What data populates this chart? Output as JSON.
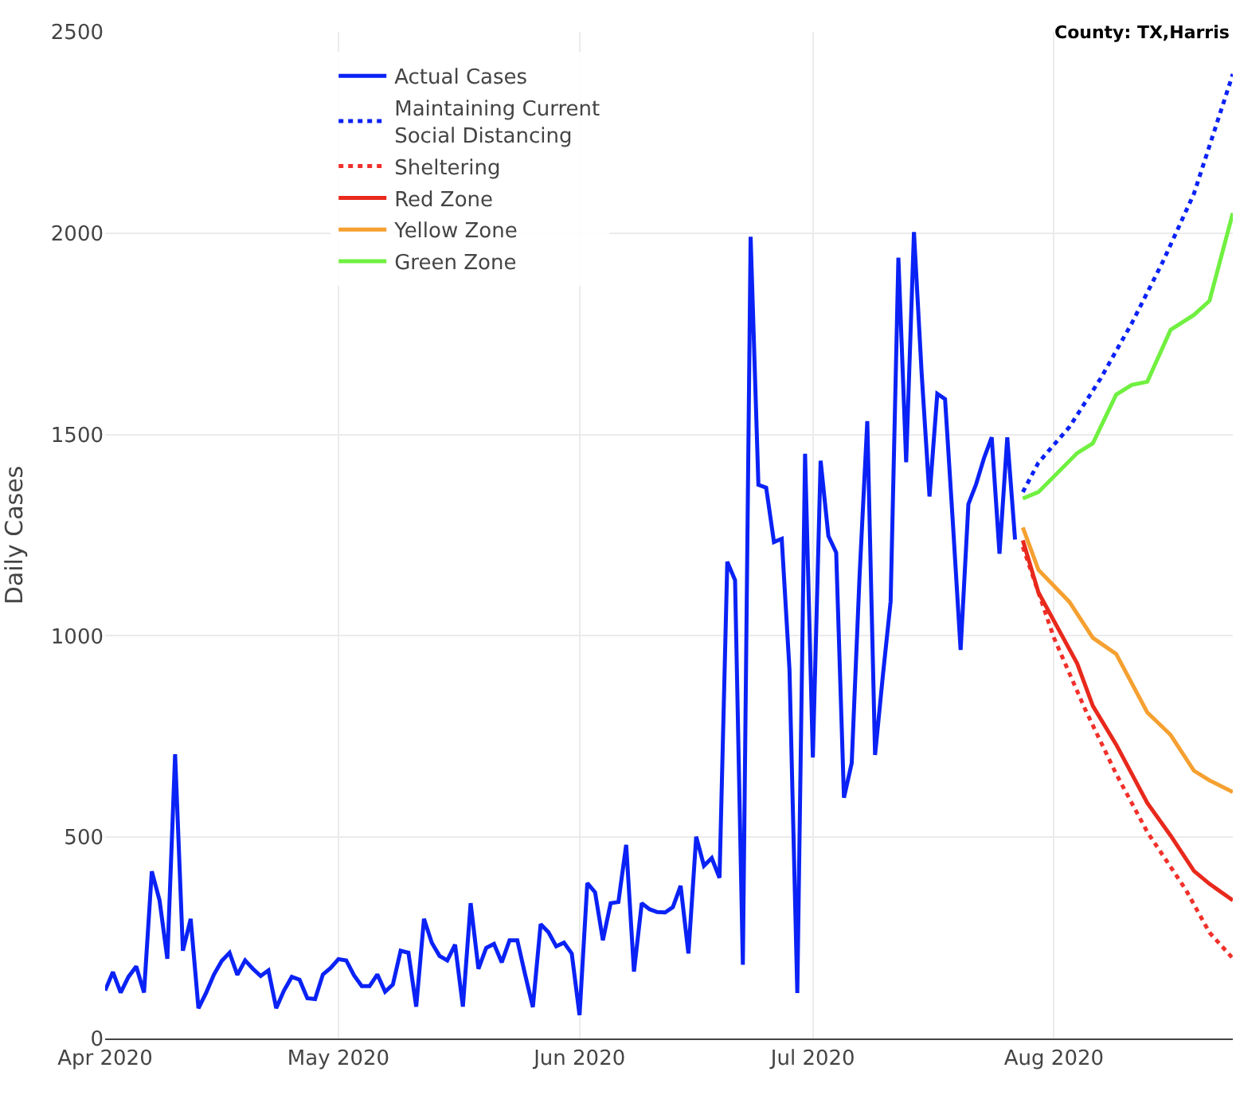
{
  "chart_data": {
    "type": "line",
    "ylabel": "Daily Cases",
    "annotations": [
      "County: TX,Harris"
    ],
    "xlim": [
      "2020-04-01",
      "2020-08-24"
    ],
    "xticks": [
      {
        "value": "2020-04-01",
        "label": "Apr 2020"
      },
      {
        "value": "2020-05-01",
        "label": "May 2020"
      },
      {
        "value": "2020-06-01",
        "label": "Jun 2020"
      },
      {
        "value": "2020-07-01",
        "label": "Jul 2020"
      },
      {
        "value": "2020-08-01",
        "label": "Aug 2020"
      }
    ],
    "ylim": [
      0,
      2500
    ],
    "yticks": [
      0,
      500,
      1000,
      1500,
      2000,
      2500
    ],
    "grid": true,
    "legend": "top left",
    "series": [
      {
        "name": "Actual Cases",
        "color": "#0a22f5",
        "line_style": "solid",
        "x": [
          "2020-04-01",
          "2020-04-02",
          "2020-04-03",
          "2020-04-04",
          "2020-04-05",
          "2020-04-06",
          "2020-04-07",
          "2020-04-08",
          "2020-04-09",
          "2020-04-10",
          "2020-04-11",
          "2020-04-12",
          "2020-04-13",
          "2020-04-14",
          "2020-04-15",
          "2020-04-16",
          "2020-04-17",
          "2020-04-18",
          "2020-04-19",
          "2020-04-20",
          "2020-04-21",
          "2020-04-22",
          "2020-04-23",
          "2020-04-24",
          "2020-04-25",
          "2020-04-26",
          "2020-04-27",
          "2020-04-28",
          "2020-04-29",
          "2020-04-30",
          "2020-05-01",
          "2020-05-02",
          "2020-05-03",
          "2020-05-04",
          "2020-05-05",
          "2020-05-06",
          "2020-05-07",
          "2020-05-08",
          "2020-05-09",
          "2020-05-10",
          "2020-05-11",
          "2020-05-12",
          "2020-05-13",
          "2020-05-14",
          "2020-05-15",
          "2020-05-16",
          "2020-05-17",
          "2020-05-18",
          "2020-05-19",
          "2020-05-20",
          "2020-05-21",
          "2020-05-22",
          "2020-05-23",
          "2020-05-24",
          "2020-05-25",
          "2020-05-26",
          "2020-05-27",
          "2020-05-28",
          "2020-05-29",
          "2020-05-30",
          "2020-05-31",
          "2020-06-01",
          "2020-06-02",
          "2020-06-03",
          "2020-06-04",
          "2020-06-05",
          "2020-06-06",
          "2020-06-07",
          "2020-06-08",
          "2020-06-09",
          "2020-06-10",
          "2020-06-11",
          "2020-06-12",
          "2020-06-13",
          "2020-06-14",
          "2020-06-15",
          "2020-06-16",
          "2020-06-17",
          "2020-06-18",
          "2020-06-19",
          "2020-06-20",
          "2020-06-21",
          "2020-06-22",
          "2020-06-23",
          "2020-06-24",
          "2020-06-25",
          "2020-06-26",
          "2020-06-27",
          "2020-06-28",
          "2020-06-29",
          "2020-06-30",
          "2020-07-01",
          "2020-07-02",
          "2020-07-03",
          "2020-07-04",
          "2020-07-05",
          "2020-07-06",
          "2020-07-07",
          "2020-07-08",
          "2020-07-09",
          "2020-07-10",
          "2020-07-11",
          "2020-07-12",
          "2020-07-13",
          "2020-07-14",
          "2020-07-15",
          "2020-07-16",
          "2020-07-17",
          "2020-07-18",
          "2020-07-19",
          "2020-07-20",
          "2020-07-21",
          "2020-07-22",
          "2020-07-23",
          "2020-07-24",
          "2020-07-25",
          "2020-07-26",
          "2020-07-27"
        ],
        "values": [
          119,
          165,
          114,
          153,
          179,
          114,
          415,
          343,
          198,
          706,
          218,
          297,
          75,
          114,
          159,
          193,
          213,
          158,
          194,
          173,
          155,
          169,
          75,
          119,
          153,
          146,
          100,
          98,
          159,
          175,
          197,
          194,
          157,
          130,
          130,
          159,
          116,
          134,
          218,
          213,
          79,
          297,
          238,
          205,
          194,
          233,
          79,
          336,
          173,
          225,
          235,
          189,
          244,
          244,
          159,
          78,
          284,
          264,
          229,
          238,
          211,
          58,
          386,
          363,
          244,
          336,
          339,
          481,
          166,
          336,
          321,
          314,
          313,
          326,
          379,
          211,
          501,
          429,
          448,
          399,
          1184,
          1138,
          183,
          1991,
          1375,
          1368,
          1233,
          1241,
          915,
          113,
          1452,
          698,
          1435,
          1248,
          1207,
          598,
          684,
          1146,
          1533,
          704,
          901,
          1085,
          1939,
          1431,
          2003,
          1649,
          1346,
          1601,
          1588,
          1282,
          965,
          1327,
          1377,
          1441,
          1493,
          1204,
          1493,
          1239
        ]
      },
      {
        "name": "Maintaining Current\nSocial Distancing",
        "color": "#0a22f5",
        "line_style": "dotted",
        "x": [
          "2020-07-28",
          "2020-07-30",
          "2020-08-03",
          "2020-08-07",
          "2020-08-11",
          "2020-08-15",
          "2020-08-19",
          "2020-08-24"
        ],
        "values": [
          1357,
          1430,
          1519,
          1639,
          1776,
          1929,
          2098,
          2395
        ]
      },
      {
        "name": "Sheltering",
        "color": "#f0302a",
        "line_style": "dotted",
        "x": [
          "2020-07-28",
          "2020-08-01",
          "2020-08-05",
          "2020-08-09",
          "2020-08-13",
          "2020-08-18",
          "2020-08-21",
          "2020-08-24"
        ],
        "values": [
          1221,
          995,
          818,
          657,
          513,
          368,
          263,
          199
        ]
      },
      {
        "name": "Red Zone",
        "color": "#e8291c",
        "line_style": "solid",
        "x": [
          "2020-07-28",
          "2020-07-30",
          "2020-08-04",
          "2020-08-06",
          "2020-08-09",
          "2020-08-13",
          "2020-08-16",
          "2020-08-19",
          "2020-08-21",
          "2020-08-24"
        ],
        "values": [
          1237,
          1108,
          931,
          826,
          730,
          585,
          504,
          416,
          384,
          343
        ]
      },
      {
        "name": "Yellow Zone",
        "color": "#f5a030",
        "line_style": "solid",
        "x": [
          "2020-07-28",
          "2020-07-30",
          "2020-08-03",
          "2020-08-06",
          "2020-08-09",
          "2020-08-13",
          "2020-08-16",
          "2020-08-19",
          "2020-08-21",
          "2020-08-24"
        ],
        "values": [
          1269,
          1164,
          1084,
          995,
          955,
          810,
          754,
          665,
          641,
          612
        ]
      },
      {
        "name": "Green Zone",
        "color": "#70f040",
        "line_style": "solid",
        "x": [
          "2020-07-28",
          "2020-07-30",
          "2020-08-04",
          "2020-08-06",
          "2020-08-09",
          "2020-08-11",
          "2020-08-13",
          "2020-08-16",
          "2020-08-19",
          "2020-08-21",
          "2020-08-24"
        ],
        "values": [
          1341,
          1357,
          1454,
          1478,
          1599,
          1623,
          1631,
          1760,
          1797,
          1832,
          2050
        ]
      }
    ]
  }
}
